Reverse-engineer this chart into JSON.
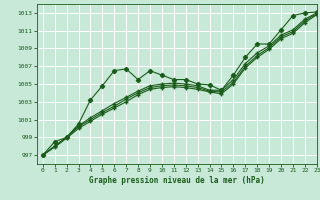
{
  "xlabel": "Graphe pression niveau de la mer (hPa)",
  "xlim": [
    -0.5,
    23
  ],
  "ylim": [
    996.0,
    1014.0
  ],
  "yticks": [
    997,
    999,
    1001,
    1003,
    1005,
    1007,
    1009,
    1011,
    1013
  ],
  "xticks": [
    0,
    1,
    2,
    3,
    4,
    5,
    6,
    7,
    8,
    9,
    10,
    11,
    12,
    13,
    14,
    15,
    16,
    17,
    18,
    19,
    20,
    21,
    22,
    23
  ],
  "background_color": "#c8e8d8",
  "grid_color": "#ffffff",
  "line_color": "#1a5c1a",
  "wavy_line": [
    997.0,
    998.5,
    999.0,
    1000.5,
    1003.2,
    1004.8,
    1006.5,
    1006.7,
    1005.5,
    1006.5,
    1006.0,
    1005.5,
    1005.5,
    1005.0,
    1004.9,
    1004.3,
    1006.0,
    1008.0,
    1009.5,
    1009.5,
    1011.1,
    1012.7,
    1013.0,
    1013.1
  ],
  "linear_lines": [
    [
      997.0,
      998.0,
      999.0,
      1000.3,
      1001.2,
      1002.0,
      1002.8,
      1003.5,
      1004.2,
      1004.8,
      1005.0,
      1005.1,
      1005.0,
      1004.8,
      1004.3,
      1004.3,
      1005.5,
      1007.3,
      1008.5,
      1009.3,
      1010.5,
      1011.1,
      1012.3,
      1013.0
    ],
    [
      997.0,
      998.0,
      999.0,
      1000.2,
      1001.0,
      1001.8,
      1002.5,
      1003.3,
      1004.0,
      1004.6,
      1004.8,
      1004.9,
      1004.8,
      1004.6,
      1004.2,
      1004.1,
      1005.2,
      1007.0,
      1008.2,
      1009.1,
      1010.3,
      1010.9,
      1012.1,
      1012.9
    ],
    [
      997.0,
      997.9,
      998.9,
      1000.0,
      1000.8,
      1001.6,
      1002.3,
      1003.0,
      1003.8,
      1004.4,
      1004.6,
      1004.7,
      1004.6,
      1004.4,
      1004.1,
      1003.9,
      1005.0,
      1006.8,
      1008.0,
      1008.9,
      1010.1,
      1010.7,
      1011.9,
      1012.8
    ]
  ]
}
